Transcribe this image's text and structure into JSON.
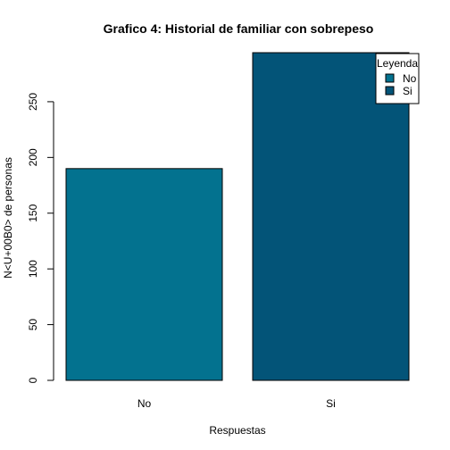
{
  "chart_data": {
    "type": "bar",
    "title": "Grafico 4: Historial de familiar con sobrepeso",
    "xlabel": "Respuestas",
    "ylabel": "N<U+00B0> de personas",
    "categories": [
      "No",
      "Si"
    ],
    "values": [
      190,
      294
    ],
    "colors": [
      "#03728F",
      "#035478"
    ],
    "ylim": [
      0,
      294
    ],
    "yticks": [
      0,
      50,
      100,
      150,
      200,
      250
    ],
    "grid": false,
    "legend": {
      "title": "Leyenda",
      "placement": "top-right",
      "entries": [
        {
          "label": "No",
          "color": "#03728F"
        },
        {
          "label": "Si",
          "color": "#035478"
        }
      ]
    }
  }
}
